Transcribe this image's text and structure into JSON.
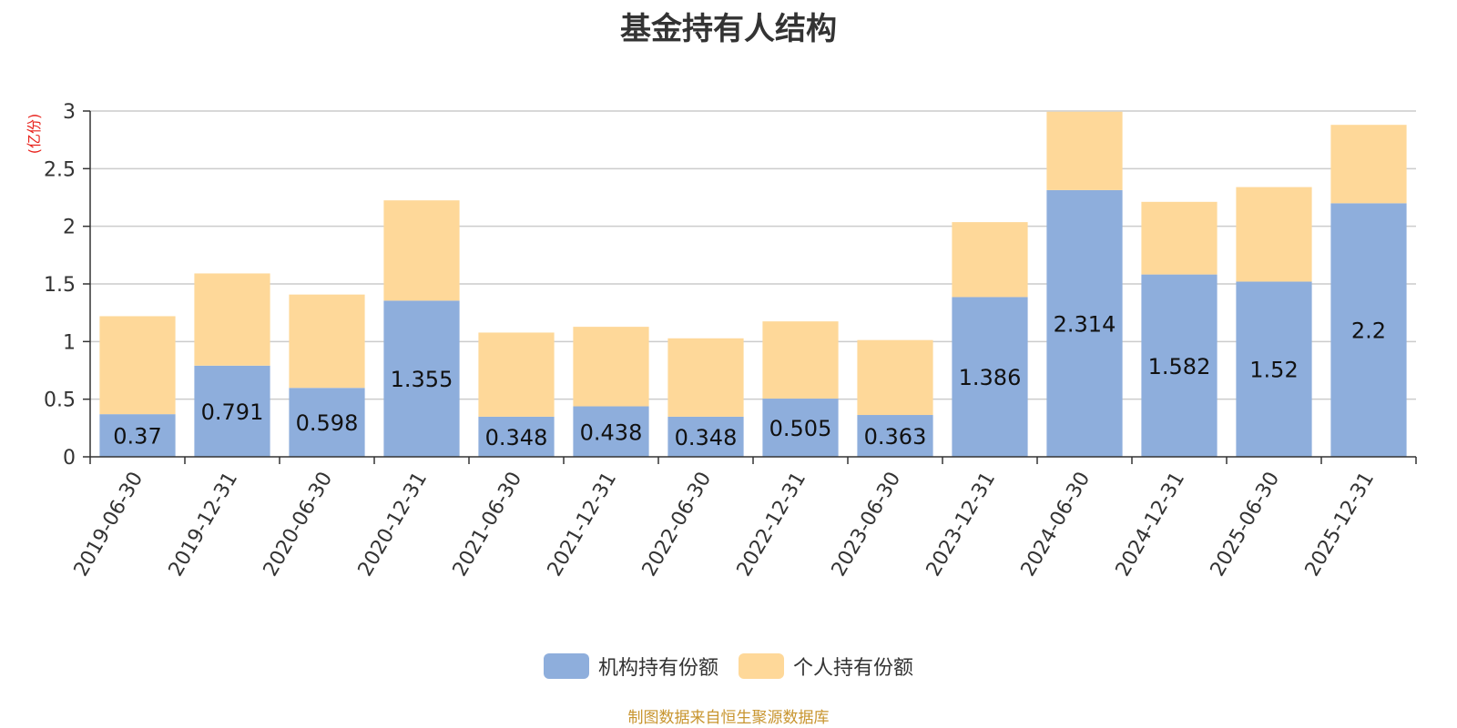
{
  "chart_data": {
    "type": "bar",
    "stacked": true,
    "title": "基金持有人结构",
    "unit_label": "(亿份)",
    "categories": [
      "2019-06-30",
      "2019-12-31",
      "2020-06-30",
      "2020-12-31",
      "2021-06-30",
      "2021-12-31",
      "2022-06-30",
      "2022-12-31",
      "2023-06-30",
      "2023-12-31",
      "2024-06-30",
      "2024-12-31",
      "2025-06-30",
      "2025-12-31"
    ],
    "series": [
      {
        "name": "机构持有份额",
        "color": "#8eaedc",
        "values": [
          0.37,
          0.791,
          0.598,
          1.355,
          0.348,
          0.438,
          0.348,
          0.505,
          0.363,
          1.386,
          2.314,
          1.582,
          1.52,
          2.2
        ],
        "labels": [
          "0.37",
          "0.791",
          "0.598",
          "1.355",
          "0.348",
          "0.438",
          "0.348",
          "0.505",
          "0.363",
          "1.386",
          "2.314",
          "1.582",
          "1.52",
          "2.2"
        ]
      },
      {
        "name": "个人持有份额",
        "color": "#fed899",
        "values": [
          0.85,
          0.8,
          0.81,
          0.87,
          0.73,
          0.69,
          0.68,
          0.67,
          0.65,
          0.65,
          0.68,
          0.63,
          0.82,
          0.68
        ]
      }
    ],
    "yticks": [
      "0",
      "0.5",
      "1",
      "1.5",
      "2",
      "2.5",
      "3"
    ],
    "ylim": [
      0,
      3
    ],
    "grid": true,
    "legend_position": "bottom"
  },
  "source_note": "制图数据来自恒生聚源数据库"
}
